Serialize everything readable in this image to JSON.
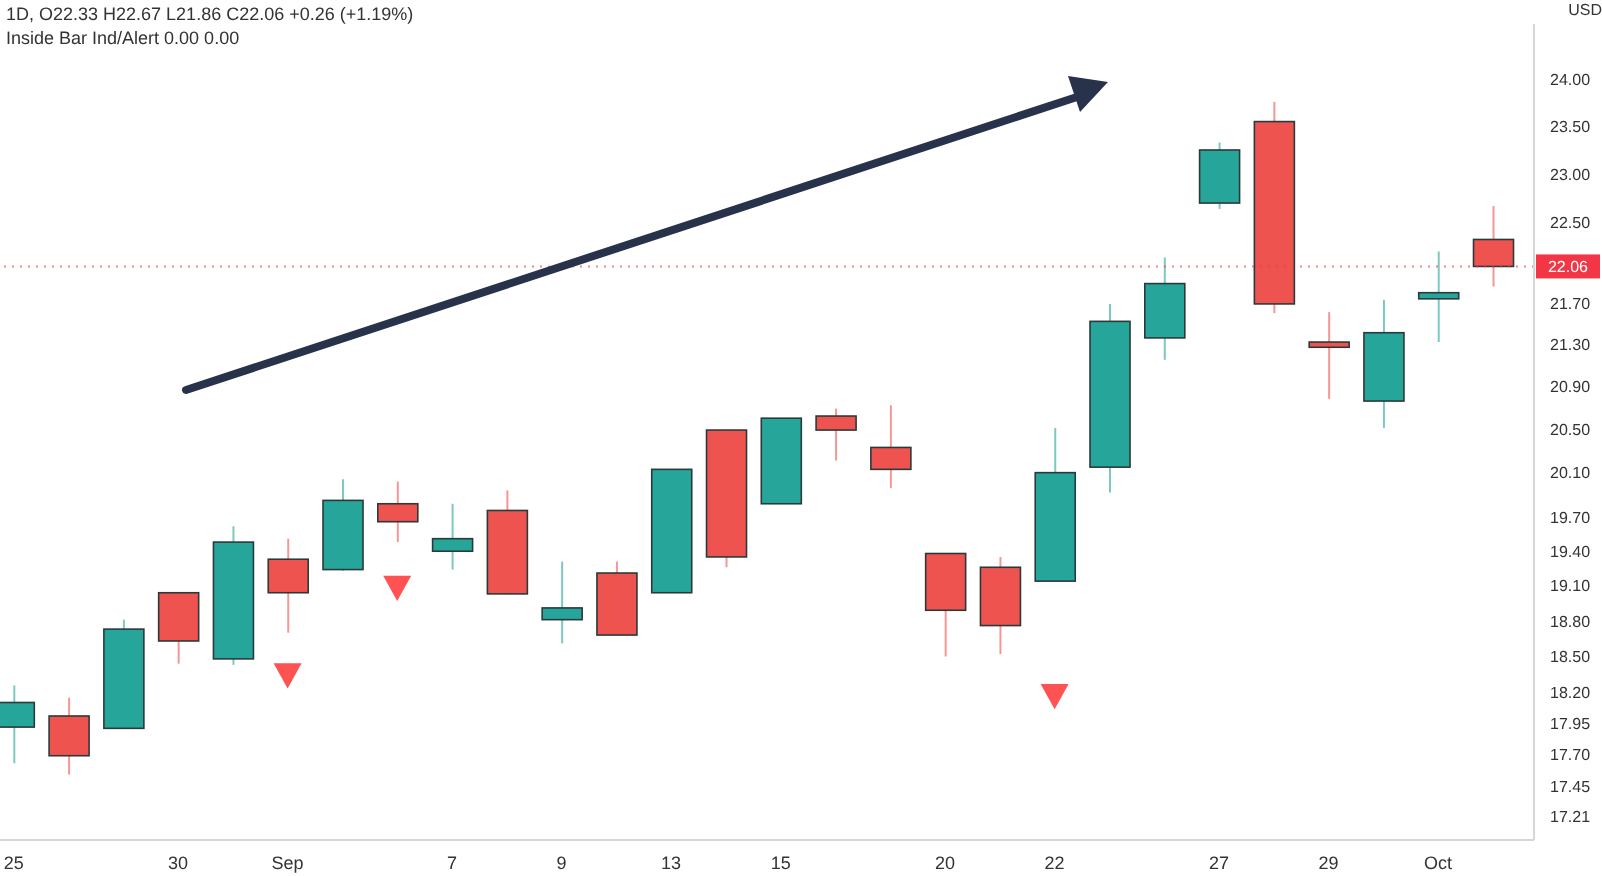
{
  "chart_data": {
    "type": "candlestick",
    "title": "1D, O22.33 H22.67 L21.86 C22.06 +0.26 (+1.19%)",
    "ylabel": "USD",
    "annotations": [
      "Inside Bar Ind/Alert 0.00 0.00"
    ],
    "categories": [
      "25",
      null,
      null,
      "30",
      null,
      "Sep",
      null,
      null,
      "7",
      null,
      "9",
      null,
      "13",
      null,
      "15",
      null,
      null,
      "20",
      null,
      "22",
      null,
      null,
      "27",
      null,
      "29",
      null,
      "Oct",
      null
    ],
    "ohlc": [
      [
        17.92,
        18.26,
        17.63,
        18.12
      ],
      [
        18.01,
        18.16,
        17.54,
        17.69
      ],
      [
        17.91,
        18.81,
        17.91,
        18.73
      ],
      [
        19.04,
        19.04,
        18.44,
        18.63
      ],
      [
        18.48,
        19.62,
        18.43,
        19.48
      ],
      [
        19.33,
        19.51,
        18.7,
        19.04
      ],
      [
        19.24,
        20.04,
        19.23,
        19.85
      ],
      [
        19.82,
        20.02,
        19.48,
        19.66
      ],
      [
        19.4,
        19.82,
        19.24,
        19.51
      ],
      [
        19.76,
        19.94,
        19.03,
        19.03
      ],
      [
        18.81,
        19.31,
        18.61,
        18.91
      ],
      [
        19.21,
        19.31,
        18.68,
        18.68
      ],
      [
        19.04,
        20.13,
        19.04,
        20.13
      ],
      [
        20.49,
        20.49,
        19.26,
        19.35
      ],
      [
        19.82,
        20.6,
        19.82,
        20.6
      ],
      [
        20.62,
        20.69,
        20.21,
        20.49
      ],
      [
        20.33,
        20.72,
        19.96,
        20.13
      ],
      [
        19.38,
        19.38,
        18.5,
        18.89
      ],
      [
        19.26,
        19.35,
        18.52,
        18.76
      ],
      [
        19.14,
        20.51,
        19.14,
        20.1
      ],
      [
        20.15,
        21.69,
        19.92,
        21.52
      ],
      [
        21.36,
        22.15,
        21.15,
        21.89
      ],
      [
        22.7,
        23.33,
        22.64,
        23.25
      ],
      [
        23.55,
        23.76,
        21.6,
        21.69
      ],
      [
        21.32,
        21.61,
        20.78,
        21.27
      ],
      [
        20.76,
        21.73,
        20.51,
        21.41
      ],
      [
        21.74,
        22.21,
        21.32,
        21.8
      ],
      [
        22.33,
        22.67,
        21.86,
        22.06
      ]
    ],
    "colors": [
      "#26a69a",
      "#ef5350",
      "#26a69a",
      "#ef5350",
      "#26a69a",
      "#ef5350",
      "#26a69a",
      "#ef5350",
      "#26a69a",
      "#ef5350",
      "#26a69a",
      "#ef5350",
      "#26a69a",
      "#ef5350",
      "#26a69a",
      "#ef5350",
      "#ef5350",
      "#ef5350",
      "#ef5350",
      "#26a69a",
      "#26a69a",
      "#26a69a",
      "#26a69a",
      "#ef5350",
      "#ef5350",
      "#26a69a",
      "#26a69a",
      "#ef5350"
    ],
    "series": [
      {
        "type": "scatter",
        "color": "#ff5252",
        "marker": "triangle",
        "values": [
          null,
          null,
          null,
          null,
          null,
          18.35,
          null,
          19.09,
          null,
          null,
          null,
          null,
          null,
          null,
          null,
          null,
          null,
          null,
          null,
          18.18,
          null,
          null,
          null,
          null,
          null,
          null,
          null,
          null
        ]
      }
    ],
    "log": true,
    "ylim": [
      17.03,
      24.61
    ],
    "yticks": [
      {
        "value": 17.21,
        "label": "17.21"
      },
      {
        "value": 17.45,
        "label": "17.45"
      },
      {
        "value": 17.7,
        "label": "17.70"
      },
      {
        "value": 17.95,
        "label": "17.95"
      },
      {
        "value": 18.2,
        "label": "18.20"
      },
      {
        "value": 18.5,
        "label": "18.50"
      },
      {
        "value": 18.8,
        "label": "18.80"
      },
      {
        "value": 19.1,
        "label": "19.10"
      },
      {
        "value": 19.4,
        "label": "19.40"
      },
      {
        "value": 19.7,
        "label": "19.70"
      },
      {
        "value": 20.1,
        "label": "20.10"
      },
      {
        "value": 20.5,
        "label": "20.50"
      },
      {
        "value": 20.9,
        "label": "20.90"
      },
      {
        "value": 21.3,
        "label": "21.30"
      },
      {
        "value": 21.7,
        "label": "21.70"
      },
      {
        "value": 22.5,
        "label": "22.50"
      },
      {
        "value": 23,
        "label": "23.00"
      },
      {
        "value": 23.5,
        "label": "23.50"
      },
      {
        "value": 24,
        "label": "24.00"
      }
    ],
    "ref_lines": [
      {
        "axis": "y",
        "value": 22.06,
        "label": "22.06",
        "color": "#f23645",
        "line_style": "dotted"
      }
    ]
  }
}
